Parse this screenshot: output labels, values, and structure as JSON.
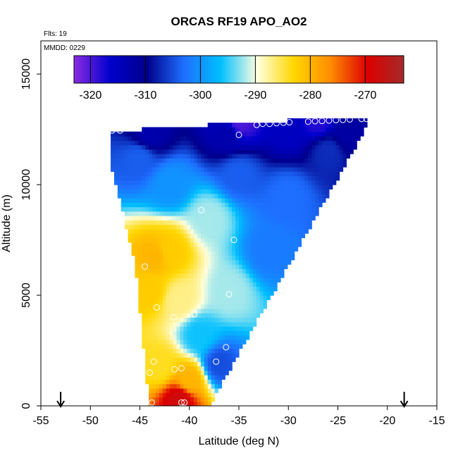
{
  "chart_data": {
    "type": "heatmap",
    "title": "ORCAS RF19 APO_AO2",
    "flights_label": "Flts: 19",
    "date_label": "MMDD: 0229",
    "xlabel": "Latitude (deg N)",
    "ylabel": "Altitude (m)",
    "xlim": [
      -55,
      -15
    ],
    "ylim": [
      0,
      16500
    ],
    "x_ticks": [
      -55,
      -50,
      -45,
      -40,
      -35,
      -30,
      -25,
      -20,
      -15
    ],
    "y_ticks": [
      0,
      5000,
      10000,
      15000
    ],
    "colorbar": {
      "range": [
        -323,
        -263
      ],
      "ticks": [
        -320,
        -310,
        -300,
        -290,
        -280,
        -270
      ],
      "colors": [
        "#8a2be2",
        "#0000cd",
        "#00008b",
        "#1e6fff",
        "#00bfff",
        "#ffffe0",
        "#ffd700",
        "#ff8c00",
        "#dd0000",
        "#a52a2a"
      ]
    },
    "region_polygon": [
      [
        -48,
        12500
      ],
      [
        -44.8,
        12500
      ],
      [
        -44.8,
        12600
      ],
      [
        -38,
        12600
      ],
      [
        -38,
        12800
      ],
      [
        -30,
        12800
      ],
      [
        -30,
        13000
      ],
      [
        -22,
        13000
      ],
      [
        -22,
        12700
      ],
      [
        -38,
        0
      ],
      [
        -44,
        0
      ],
      [
        -44.5,
        2000
      ],
      [
        -45.5,
        6500
      ],
      [
        -48,
        11000
      ]
    ],
    "field": [
      {
        "lat": -43.5,
        "alt": 6800,
        "value": -280
      },
      {
        "lat": -42,
        "alt": 7000,
        "value": -282
      },
      {
        "lat": -44,
        "alt": 5200,
        "value": -282
      },
      {
        "lat": -41,
        "alt": 4800,
        "value": -287
      },
      {
        "lat": -40,
        "alt": 1200,
        "value": -280
      },
      {
        "lat": -41,
        "alt": 300,
        "value": -268
      },
      {
        "lat": -43,
        "alt": 1800,
        "value": -284
      },
      {
        "lat": -37,
        "alt": 1900,
        "value": -305
      },
      {
        "lat": -39,
        "alt": 3200,
        "value": -296
      },
      {
        "lat": -36,
        "alt": 5200,
        "value": -292
      },
      {
        "lat": -38,
        "alt": 8500,
        "value": -292
      },
      {
        "lat": -42,
        "alt": 10000,
        "value": -300
      },
      {
        "lat": -45,
        "alt": 11200,
        "value": -304
      },
      {
        "lat": -35,
        "alt": 10500,
        "value": -304
      },
      {
        "lat": -30,
        "alt": 9500,
        "value": -303
      },
      {
        "lat": -32,
        "alt": 7000,
        "value": -302
      },
      {
        "lat": -26,
        "alt": 11500,
        "value": -307
      },
      {
        "lat": -24,
        "alt": 12400,
        "value": -312
      },
      {
        "lat": -44,
        "alt": 12300,
        "value": -313
      },
      {
        "lat": -36,
        "alt": 12300,
        "value": -313
      },
      {
        "lat": -30,
        "alt": 12500,
        "value": -315
      },
      {
        "lat": -35,
        "alt": 12800,
        "value": -320
      },
      {
        "lat": -27,
        "alt": 12900,
        "value": -318
      }
    ],
    "observations": [
      {
        "lat": -47.8,
        "alt": 12450
      },
      {
        "lat": -47.0,
        "alt": 12450
      },
      {
        "lat": -35.0,
        "alt": 12250
      },
      {
        "lat": -33.2,
        "alt": 12700
      },
      {
        "lat": -32.6,
        "alt": 12750
      },
      {
        "lat": -31.9,
        "alt": 12750
      },
      {
        "lat": -31.2,
        "alt": 12780
      },
      {
        "lat": -30.5,
        "alt": 12800
      },
      {
        "lat": -29.9,
        "alt": 12820
      },
      {
        "lat": -28.0,
        "alt": 12850
      },
      {
        "lat": -27.3,
        "alt": 12870
      },
      {
        "lat": -26.6,
        "alt": 12880
      },
      {
        "lat": -25.9,
        "alt": 12900
      },
      {
        "lat": -25.2,
        "alt": 12920
      },
      {
        "lat": -24.5,
        "alt": 12930
      },
      {
        "lat": -23.8,
        "alt": 12950
      },
      {
        "lat": -22.6,
        "alt": 12970
      },
      {
        "lat": -22.1,
        "alt": 12970
      },
      {
        "lat": -38.8,
        "alt": 8850
      },
      {
        "lat": -35.5,
        "alt": 7500
      },
      {
        "lat": -44.5,
        "alt": 6300
      },
      {
        "lat": -36.0,
        "alt": 5050
      },
      {
        "lat": -39.5,
        "alt": 4150
      },
      {
        "lat": -41.6,
        "alt": 4000
      },
      {
        "lat": -43.3,
        "alt": 4450
      },
      {
        "lat": -36.3,
        "alt": 2650
      },
      {
        "lat": -37.3,
        "alt": 2000
      },
      {
        "lat": -44.0,
        "alt": 1500
      },
      {
        "lat": -43.6,
        "alt": 2000
      },
      {
        "lat": -41.5,
        "alt": 1650
      },
      {
        "lat": -40.8,
        "alt": 1700
      },
      {
        "lat": -43.8,
        "alt": 150
      },
      {
        "lat": -40.8,
        "alt": 150
      },
      {
        "lat": -40.5,
        "alt": 150
      }
    ],
    "arrows_at_lat": [
      -53,
      -18.3
    ]
  }
}
